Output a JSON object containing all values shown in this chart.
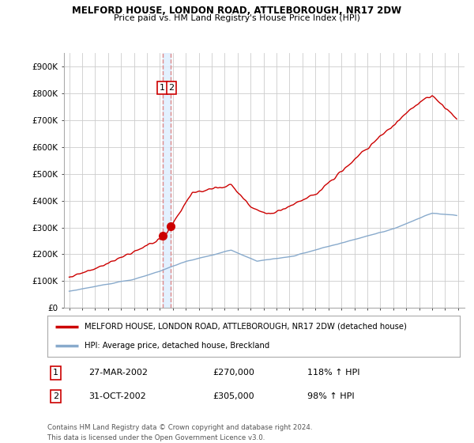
{
  "title": "MELFORD HOUSE, LONDON ROAD, ATTLEBOROUGH, NR17 2DW",
  "subtitle": "Price paid vs. HM Land Registry's House Price Index (HPI)",
  "ylabel_ticks": [
    "£0",
    "£100K",
    "£200K",
    "£300K",
    "£400K",
    "£500K",
    "£600K",
    "£700K",
    "£800K",
    "£900K"
  ],
  "ytick_values": [
    0,
    100000,
    200000,
    300000,
    400000,
    500000,
    600000,
    700000,
    800000,
    900000
  ],
  "ylim": [
    0,
    950000
  ],
  "xlim_start": 1994.6,
  "xlim_end": 2025.5,
  "sale1_x": 2002.23,
  "sale1_y": 270000,
  "sale2_x": 2002.83,
  "sale2_y": 305000,
  "sale1_date": "27-MAR-2002",
  "sale1_price": "£270,000",
  "sale1_hpi": "118% ↑ HPI",
  "sale2_date": "31-OCT-2002",
  "sale2_price": "£305,000",
  "sale2_hpi": "98% ↑ HPI",
  "legend_line1": "MELFORD HOUSE, LONDON ROAD, ATTLEBOROUGH, NR17 2DW (detached house)",
  "legend_line2": "HPI: Average price, detached house, Breckland",
  "footer": "Contains HM Land Registry data © Crown copyright and database right 2024.\nThis data is licensed under the Open Government Licence v3.0.",
  "red_color": "#cc0000",
  "blue_color": "#88aacc",
  "dashed_color": "#dd8888",
  "shade_color": "#ddeeff",
  "background_color": "#ffffff",
  "grid_color": "#cccccc"
}
